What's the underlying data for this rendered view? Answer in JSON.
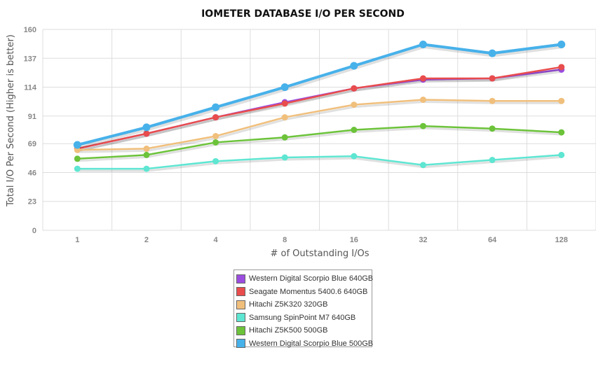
{
  "chart_data": {
    "type": "line",
    "title": "IOMETER DATABASE I/O PER SECOND",
    "xlabel": "# of Outstanding I/Os",
    "ylabel": "Total I/O Per Second (Higher is better)",
    "categories": [
      "1",
      "2",
      "4",
      "8",
      "16",
      "32",
      "64",
      "128"
    ],
    "yticks": [
      "0",
      "23",
      "46",
      "69",
      "91",
      "114",
      "137",
      "160"
    ],
    "ylim": [
      0,
      160
    ],
    "grid": true,
    "legend_position": "bottom-center",
    "series": [
      {
        "name": "Western Digital Scorpio Blue 640GB",
        "color": "#9b4de0",
        "values": [
          65,
          77,
          90,
          102,
          113,
          120,
          121,
          128
        ]
      },
      {
        "name": "Seagate Momentus 5400.6 640GB",
        "color": "#e84c4c",
        "values": [
          65,
          77,
          90,
          101,
          113,
          121,
          121,
          130
        ]
      },
      {
        "name": "Hitachi Z5K320 320GB",
        "color": "#f0bf7c",
        "values": [
          64,
          65,
          75,
          90,
          100,
          104,
          103,
          103
        ]
      },
      {
        "name": "Samsung SpinPoint M7 640GB",
        "color": "#5ee6d2",
        "values": [
          49,
          49,
          55,
          58,
          59,
          52,
          56,
          60
        ]
      },
      {
        "name": "Hitachi Z5K500 500GB",
        "color": "#6cc33a",
        "values": [
          57,
          60,
          70,
          74,
          80,
          83,
          81,
          78
        ]
      },
      {
        "name": "Western Digital Scorpio Blue 500GB",
        "color": "#47b1ea",
        "values": [
          68,
          82,
          98,
          114,
          131,
          148,
          141,
          148
        ]
      }
    ]
  }
}
